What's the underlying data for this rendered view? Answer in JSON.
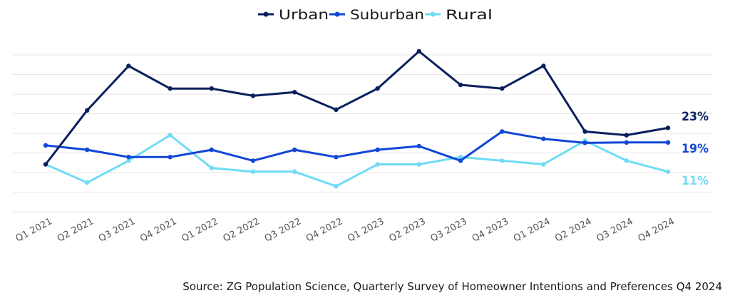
{
  "chart_data": {
    "type": "line",
    "categories": [
      "Q1 2021",
      "Q2 2021",
      "Q3 2021",
      "Q4 2021",
      "Q1 2022",
      "Q2 2022",
      "Q3 2022",
      "Q4 2022",
      "Q1 2023",
      "Q2 2023",
      "Q3 2023",
      "Q4 2023",
      "Q1 2024",
      "Q2 2024",
      "Q3 2024",
      "Q4 2024"
    ],
    "series": [
      {
        "name": "Urban",
        "color": "#0b1f5e",
        "values": [
          13.0,
          27.8,
          40.0,
          33.8,
          33.8,
          31.8,
          32.8,
          28.0,
          33.8,
          44.0,
          34.8,
          33.8,
          40.0,
          22.0,
          21.0,
          23.0
        ],
        "end_label": "23%"
      },
      {
        "name": "Suburban",
        "color": "#1246d6",
        "values": [
          18.2,
          17.0,
          15.0,
          15.0,
          17.0,
          14.0,
          17.0,
          15.0,
          17.0,
          18.0,
          14.0,
          22.0,
          20.0,
          18.9,
          19.0,
          19.0
        ],
        "end_label": "19%"
      },
      {
        "name": "Rural",
        "color": "#6fdcf5",
        "values": [
          13.0,
          8.0,
          14.0,
          21.0,
          12.0,
          11.0,
          11.0,
          7.0,
          13.0,
          13.0,
          15.0,
          14.0,
          13.0,
          19.5,
          14.0,
          11.0
        ],
        "end_label": "11%"
      }
    ],
    "ylim": [
      0,
      44
    ],
    "grid": true,
    "legend_position": "top-center",
    "source": "Source: ZG Population Science, Quarterly Survey of Homeowner Intentions and Preferences Q4 2024"
  }
}
